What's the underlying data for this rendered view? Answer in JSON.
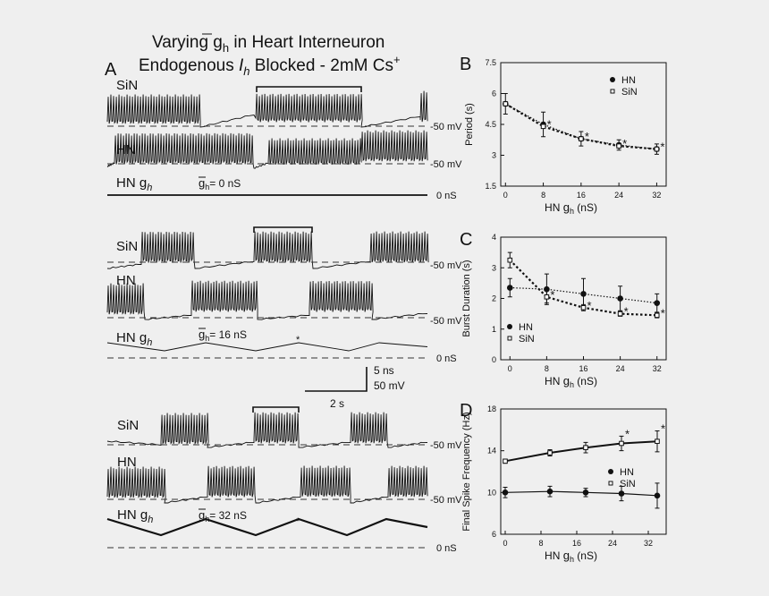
{
  "figure": {
    "title_line1_pre": "Varying ",
    "title_g": "g",
    "title_h": "h",
    "title_line1_post": " in Heart Interneuron",
    "title_line2_pre": "Endogenous ",
    "title_I": "I",
    "title_line2_post": " Blocked - 2mM Cs",
    "title_sup": "+",
    "panel_A": "A",
    "panel_B": "B",
    "panel_C": "C",
    "panel_D": "D"
  },
  "traces": {
    "sin_label": "SiN",
    "hn_label": "HN",
    "hng_label": "HN g",
    "hng_sub": "h",
    "mv50": "-50 mV",
    "ns0": "0 nS",
    "gbar_pre": "g",
    "gbar_sub": "h",
    "row1_g": "= 0 nS",
    "row2_g": "= 16 nS",
    "row3_g": "= 32 nS",
    "star": "*",
    "scale_ns": "5 ns",
    "scale_mv": "50 mV",
    "scale_s": "2 s"
  },
  "chart_data": [
    {
      "panel": "B",
      "type": "line",
      "ylabel": "Period (s)",
      "xlabel_pre": "HN ",
      "xlabel_g": "g",
      "xlabel_sub": "h",
      "xlabel_post": " (nS)",
      "xticks": [
        0,
        8,
        16,
        24,
        32
      ],
      "yticks": [
        "1.5",
        "3",
        "4.5",
        "6",
        "7.5"
      ],
      "xlim": [
        -1,
        34
      ],
      "ylim": [
        1.5,
        7.5
      ],
      "legend": "top-right",
      "series": [
        {
          "name": "HN",
          "marker": "filled",
          "x": [
            0,
            8,
            16,
            24,
            32
          ],
          "y": [
            5.5,
            4.5,
            3.8,
            3.5,
            3.3
          ],
          "err": [
            0.5,
            0.6,
            0.35,
            0.25,
            0.25
          ]
        },
        {
          "name": "SiN",
          "marker": "open",
          "x": [
            0,
            8,
            16,
            24,
            32
          ],
          "y": [
            5.5,
            4.4,
            3.8,
            3.45,
            3.3
          ],
          "err": [
            0,
            0,
            0,
            0,
            0
          ]
        }
      ],
      "stars": [
        8,
        16,
        24,
        32
      ]
    },
    {
      "panel": "C",
      "type": "line",
      "ylabel": "Burst Duration (s)",
      "xlabel_pre": "HN ",
      "xlabel_g": "g",
      "xlabel_sub": "h",
      "xlabel_post": " (nS)",
      "xticks": [
        0,
        8,
        16,
        24,
        32
      ],
      "yticks": [
        "0",
        "1",
        "2",
        "3",
        "4"
      ],
      "xlim": [
        -2,
        34
      ],
      "ylim": [
        0,
        4
      ],
      "legend": "bottom-left",
      "series": [
        {
          "name": "HN",
          "marker": "filled",
          "x": [
            0,
            8,
            16,
            24,
            32
          ],
          "y": [
            2.35,
            2.3,
            2.15,
            2.0,
            1.85
          ],
          "err": [
            0.3,
            0.5,
            0.5,
            0.4,
            0.3
          ]
        },
        {
          "name": "SiN",
          "marker": "open",
          "x": [
            0,
            8,
            16,
            24,
            32
          ],
          "y": [
            3.25,
            2.05,
            1.7,
            1.5,
            1.45
          ],
          "err": [
            0.25,
            0.2,
            0.1,
            0.08,
            0.08
          ]
        }
      ],
      "stars": [
        8,
        16,
        24,
        32
      ]
    },
    {
      "panel": "D",
      "type": "line",
      "ylabel": "Final Spike Frequency (Hz)",
      "xlabel_pre": "HN ",
      "xlabel_g": "g",
      "xlabel_sub": "h",
      "xlabel_post": " (nS)",
      "xticks": [
        0,
        8,
        16,
        24,
        32
      ],
      "yticks": [
        "6",
        "10",
        "14",
        "18"
      ],
      "xlim": [
        -1,
        36
      ],
      "ylim": [
        6,
        18
      ],
      "legend": "center-right",
      "series": [
        {
          "name": "HN",
          "marker": "filled",
          "x": [
            0,
            10,
            18,
            26,
            34
          ],
          "y": [
            10.0,
            10.1,
            10.0,
            9.9,
            9.7
          ],
          "err": [
            0.5,
            0.5,
            0.4,
            0.7,
            1.2
          ]
        },
        {
          "name": "SiN",
          "marker": "open",
          "x": [
            0,
            10,
            18,
            26,
            34
          ],
          "y": [
            13.0,
            13.8,
            14.3,
            14.7,
            14.9
          ],
          "err": [
            0.2,
            0.3,
            0.5,
            0.7,
            1.0
          ]
        }
      ],
      "stars": [
        26,
        34
      ]
    }
  ]
}
